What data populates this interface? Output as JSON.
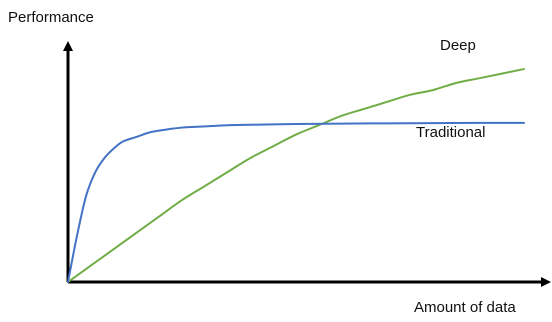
{
  "chart_data": {
    "type": "line",
    "xlabel": "Amount of data",
    "ylabel": "Performance",
    "xlim": [
      0,
      100
    ],
    "ylim": [
      0,
      100
    ],
    "grid": false,
    "series": [
      {
        "name": "Deep",
        "color": "#70ad47",
        "x": [
          0,
          5,
          10,
          15,
          20,
          25,
          30,
          35,
          40,
          45,
          50,
          55,
          60,
          65,
          70,
          75,
          80,
          85,
          90,
          95,
          100
        ],
        "y": [
          0,
          7,
          14,
          21,
          28,
          35,
          41,
          47,
          53,
          58,
          63,
          67,
          71,
          74,
          77,
          80,
          82,
          85,
          87,
          89,
          91
        ]
      },
      {
        "name": "Traditional",
        "color": "#4472c4",
        "x": [
          0,
          2,
          4,
          6,
          8,
          10,
          12,
          15,
          18,
          21,
          25,
          30,
          35,
          40,
          50,
          60,
          70,
          80,
          90,
          100
        ],
        "y": [
          0,
          20,
          37,
          47,
          53,
          57,
          60,
          62,
          64,
          65,
          66,
          66.5,
          67,
          67.2,
          67.5,
          67.7,
          67.8,
          67.9,
          68,
          68
        ]
      }
    ]
  }
}
